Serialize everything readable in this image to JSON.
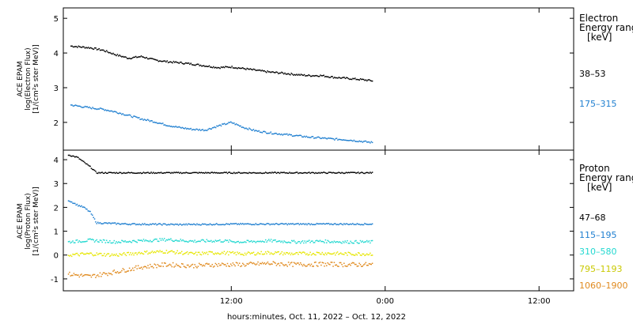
{
  "chart_data": [
    {
      "type": "scatter",
      "panel": "electron",
      "ylabel_lines": [
        "ACE EPAM",
        "log(Electron Flux)",
        "[1/(cm²s ster MeV)]"
      ],
      "ylim": [
        1.2,
        5.3
      ],
      "yticks": [
        2,
        3,
        4,
        5
      ],
      "legend_title_lines": [
        "Electron",
        "Energy range",
        "[keV]"
      ],
      "series": [
        {
          "name": "38–53",
          "color": "#000000",
          "x": [
            -12.5,
            -11,
            -10,
            -9,
            -8,
            -7,
            -6,
            -5,
            -4,
            -3,
            -2,
            -1,
            0,
            1,
            2,
            3,
            4,
            5,
            6,
            7,
            8,
            9,
            10,
            11
          ],
          "y": [
            4.2,
            4.15,
            4.08,
            3.95,
            3.85,
            3.9,
            3.8,
            3.75,
            3.72,
            3.68,
            3.63,
            3.58,
            3.6,
            3.55,
            3.5,
            3.45,
            3.42,
            3.38,
            3.35,
            3.35,
            3.3,
            3.27,
            3.24,
            3.2
          ]
        },
        {
          "name": "175–315",
          "color": "#1f7fd0",
          "x": [
            -12.5,
            -11,
            -10,
            -9,
            -8,
            -7,
            -6,
            -5,
            -4,
            -3,
            -2,
            -1,
            0,
            1,
            2,
            3,
            4,
            5,
            6,
            7,
            8,
            9,
            10,
            11
          ],
          "y": [
            2.5,
            2.42,
            2.38,
            2.3,
            2.2,
            2.1,
            2.02,
            1.92,
            1.85,
            1.8,
            1.78,
            1.9,
            2.0,
            1.85,
            1.75,
            1.7,
            1.66,
            1.62,
            1.58,
            1.55,
            1.52,
            1.5,
            1.46,
            1.42
          ]
        }
      ]
    },
    {
      "type": "scatter",
      "panel": "proton",
      "ylabel_lines": [
        "ACE EPAM",
        "log(Proton Flux)",
        "[1/(cm²s ster MeV)]"
      ],
      "ylim": [
        -1.5,
        4.4
      ],
      "yticks": [
        -1,
        0,
        1,
        2,
        3,
        4
      ],
      "legend_title_lines": [
        "Proton",
        "Energy range",
        "[keV]"
      ],
      "series": [
        {
          "name": "47–68",
          "color": "#000000",
          "x": [
            -12.7,
            -12,
            -11.5,
            -11,
            -10.5,
            -8,
            -4,
            0,
            4,
            8,
            11
          ],
          "y": [
            4.2,
            4.1,
            3.9,
            3.7,
            3.45,
            3.45,
            3.45,
            3.45,
            3.45,
            3.45,
            3.45
          ]
        },
        {
          "name": "115–195",
          "color": "#1f7fd0",
          "x": [
            -12.7,
            -12,
            -11.5,
            -11,
            -10.5,
            -8,
            -4,
            0,
            4,
            8,
            11
          ],
          "y": [
            2.3,
            2.1,
            2.0,
            1.8,
            1.35,
            1.3,
            1.28,
            1.3,
            1.3,
            1.3,
            1.3
          ]
        },
        {
          "name": "310–580",
          "color": "#22d8d0",
          "x": [
            -12.7,
            -11,
            -9,
            -7,
            -5,
            -3,
            -1,
            1,
            3,
            5,
            7,
            9,
            11
          ],
          "y": [
            0.55,
            0.62,
            0.55,
            0.6,
            0.65,
            0.58,
            0.6,
            0.55,
            0.6,
            0.55,
            0.58,
            0.55,
            0.55
          ]
        },
        {
          "name": "795–1193",
          "color": "#e6e600",
          "x": [
            -12.7,
            -11,
            -9,
            -7,
            -5,
            -3,
            -1,
            1,
            3,
            5,
            7,
            9,
            11
          ],
          "y": [
            0.0,
            0.05,
            0.0,
            0.1,
            0.15,
            0.05,
            0.1,
            0.05,
            0.1,
            0.05,
            0.08,
            0.05,
            0.05
          ]
        },
        {
          "name": "1060–1900",
          "color": "#e08a1e",
          "x": [
            -12.7,
            -11,
            -9,
            -7,
            -5,
            -3,
            -1,
            1,
            3,
            5,
            7,
            9,
            11
          ],
          "y": [
            -0.8,
            -0.9,
            -0.7,
            -0.5,
            -0.4,
            -0.45,
            -0.4,
            -0.4,
            -0.35,
            -0.4,
            -0.38,
            -0.4,
            -0.4
          ]
        }
      ]
    }
  ],
  "x_axis": {
    "ticks": [
      {
        "hours": 0,
        "label": "12:00"
      },
      {
        "hours": 12,
        "label": "0:00"
      },
      {
        "hours": 24,
        "label": "12:00"
      }
    ],
    "range_hours": [
      -13.1,
      26.7
    ],
    "title": "hours:minutes, Oct. 11, 2022 – Oct. 12, 2022"
  }
}
